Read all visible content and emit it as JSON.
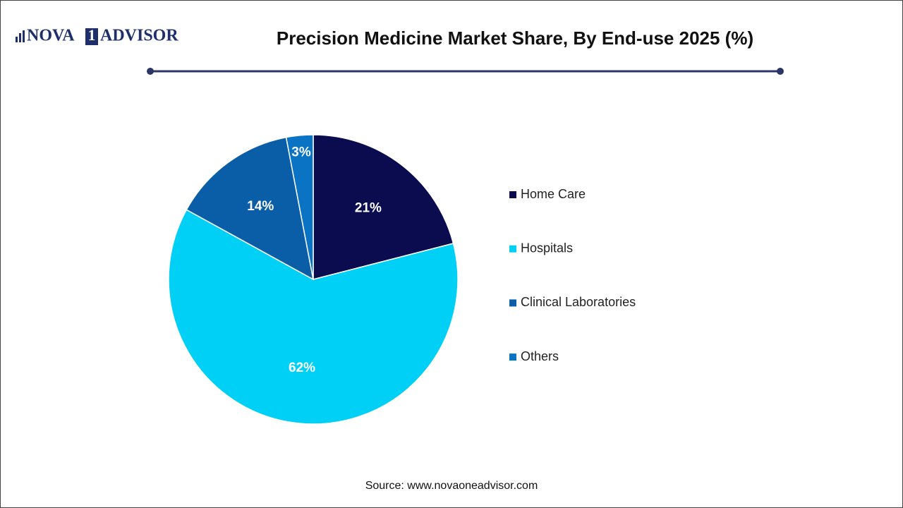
{
  "logo": [
    "NOVA",
    "1",
    "ADVISOR"
  ],
  "chart_data": {
    "type": "pie",
    "title": "Precision Medicine Market Share, By End-use 2025 (%)",
    "categories": [
      "Home Care",
      "Hospitals",
      "Clinical Laboratories",
      "Others"
    ],
    "values": [
      21,
      62,
      14,
      3
    ],
    "value_labels": [
      "21%",
      "62%",
      "14%",
      "3%"
    ],
    "colors": [
      "#0b0b4f",
      "#00d0f5",
      "#0a5ea8",
      "#0a73c4"
    ]
  },
  "source": "Source: www.novaoneadvisor.com"
}
